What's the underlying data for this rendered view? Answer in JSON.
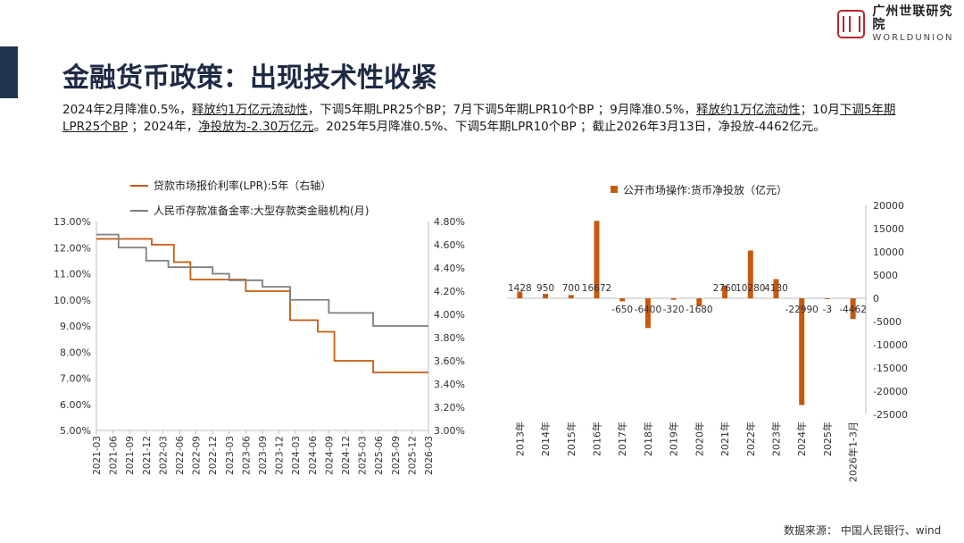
{
  "header": {
    "title": "金融货币政策：出现技术性收紧",
    "logo_cn": "广州世联研究院",
    "logo_en": "WORLDUNION"
  },
  "summary": [
    {
      "text": "2024年2月降准0.5%，",
      "u": false
    },
    {
      "text": "释放约1万亿元流动性",
      "u": true
    },
    {
      "text": "，下调5年期LPR25个BP；7月下调5年期LPR10个BP ；9月降准0.5%，",
      "u": false
    },
    {
      "text": "释放约1万亿流动性",
      "u": true
    },
    {
      "text": "；10月",
      "u": false
    },
    {
      "text": "下调5年期LPR25个BP",
      "u": true
    },
    {
      "text": " ；2024年，",
      "u": false
    },
    {
      "text": "净投放为-2.30万亿元",
      "u": true
    },
    {
      "text": "。2025年5月降准0.5%、下调5年期LPR10个BP ；截止2026年3月13日，净投放-4462亿元。",
      "u": false
    }
  ],
  "source": "数据来源：  中国人民银行、wind",
  "chart_data": [
    {
      "type": "line",
      "series": [
        {
          "name": "贷款市场报价利率(LPR):5年（右轴）",
          "color": "#c55a11",
          "axis": "right",
          "points": [
            [
              "2021-03",
              4.65
            ],
            [
              "2021-12",
              4.65
            ],
            [
              "2022-01",
              4.6
            ],
            [
              "2022-05",
              4.45
            ],
            [
              "2022-08",
              4.3
            ],
            [
              "2023-06",
              4.2
            ],
            [
              "2024-02",
              3.95
            ],
            [
              "2024-07",
              3.85
            ],
            [
              "2024-10",
              3.6
            ],
            [
              "2025-05",
              3.5
            ],
            [
              "2026-03",
              3.5
            ]
          ]
        },
        {
          "name": "人民币存款准备金率:大型存款类金融机构(月)",
          "color": "#7f7f7f",
          "axis": "left",
          "points": [
            [
              "2021-03",
              12.5
            ],
            [
              "2021-07",
              12.0
            ],
            [
              "2021-12",
              11.5
            ],
            [
              "2022-04",
              11.25
            ],
            [
              "2022-12",
              11.0
            ],
            [
              "2023-03",
              10.75
            ],
            [
              "2023-09",
              10.5
            ],
            [
              "2024-02",
              10.0
            ],
            [
              "2024-09",
              9.5
            ],
            [
              "2025-05",
              9.0
            ],
            [
              "2026-03",
              9.0
            ]
          ]
        }
      ],
      "x_ticks": [
        "2021-03",
        "2021-06",
        "2021-09",
        "2021-12",
        "2022-03",
        "2022-06",
        "2022-09",
        "2022-12",
        "2023-03",
        "2023-06",
        "2023-09",
        "2023-12",
        "2024-03",
        "2024-06",
        "2024-09",
        "2024-12",
        "2025-03",
        "2025-06",
        "2025-09",
        "2025-12",
        "2026-03"
      ],
      "y_left_ticks": [
        "5.00%",
        "6.00%",
        "7.00%",
        "8.00%",
        "9.00%",
        "10.00%",
        "11.00%",
        "12.00%",
        "13.00%"
      ],
      "y_left_range": [
        5,
        13
      ],
      "y_right_ticks": [
        "3.00%",
        "3.20%",
        "3.40%",
        "3.60%",
        "3.80%",
        "4.00%",
        "4.20%",
        "4.40%",
        "4.60%",
        "4.80%"
      ],
      "y_right_range": [
        3.0,
        4.8
      ]
    },
    {
      "type": "bar",
      "legend": "公开市场操作:货币净投放（亿元）",
      "color": "#c55a11",
      "categories": [
        "2013年",
        "2014年",
        "2015年",
        "2016年",
        "2017年",
        "2018年",
        "2019年",
        "2020年",
        "2021年",
        "2022年",
        "2023年",
        "2024年",
        "2025年",
        "2026年1-3月"
      ],
      "values": [
        1428,
        950,
        700,
        16672,
        -650,
        -6400,
        -320,
        -1680,
        2760,
        10280,
        4130,
        -22990,
        -3,
        -4462
      ],
      "labels": [
        "1428",
        "950",
        "700",
        "16672",
        "-650",
        "-6400",
        "-320",
        "-1680",
        "2760",
        "10280",
        "4130",
        "-22990",
        "-3",
        "-4462"
      ],
      "y_ticks": [
        "20000",
        "15000",
        "10000",
        "5000",
        "0",
        "-5000",
        "-10000",
        "-15000",
        "-20000",
        "-25000"
      ],
      "y_range": [
        -25000,
        20000
      ]
    }
  ]
}
